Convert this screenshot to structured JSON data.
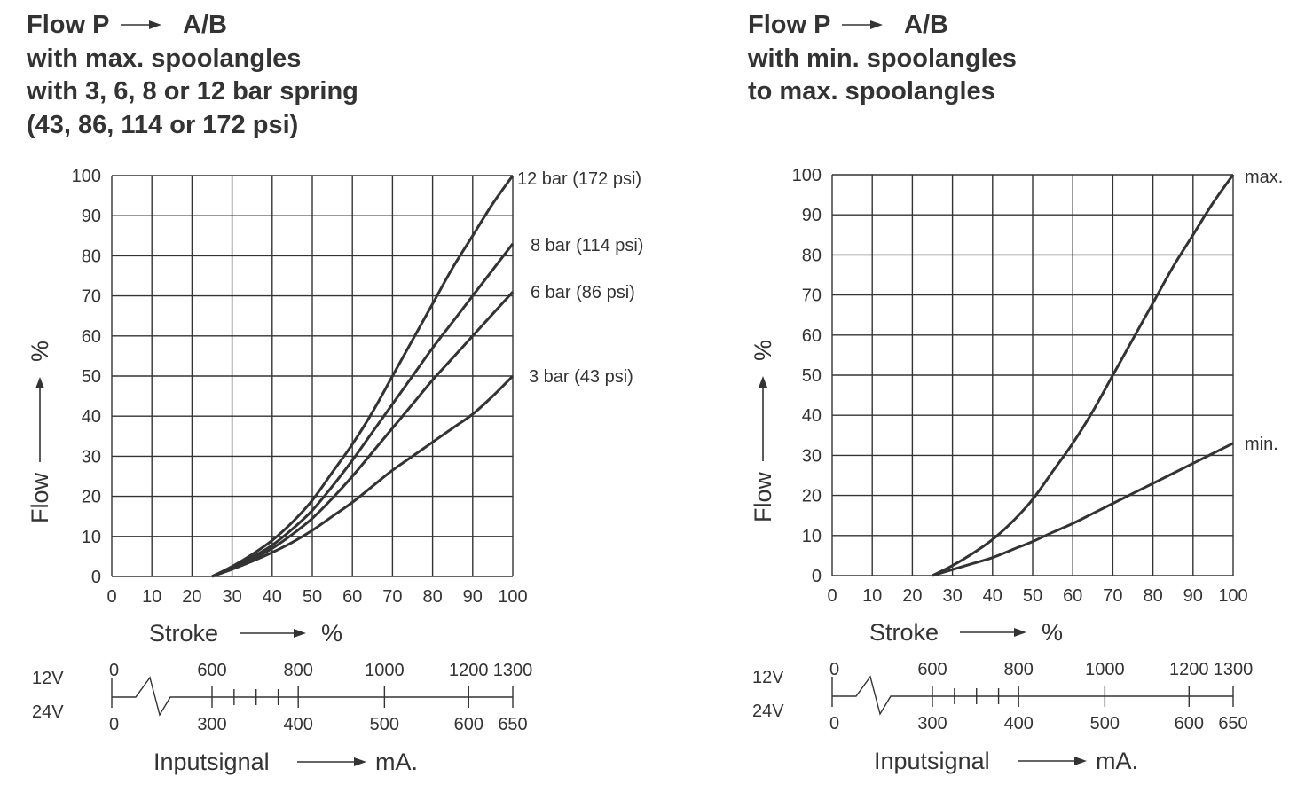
{
  "chart_data": [
    {
      "type": "line",
      "title_lines": [
        "Flow P",
        "A/B",
        "with max. spoolangles",
        "with 3, 6, 8 or 12 bar spring",
        "(43, 86, 114 or 172 psi)"
      ],
      "xlabel": "Stroke",
      "xlabel_unit": "%",
      "ylabel": "Flow",
      "ylabel_unit": "%",
      "xlim": [
        0,
        100
      ],
      "ylim": [
        0,
        100
      ],
      "xticks": [
        "0",
        "10",
        "20",
        "30",
        "40",
        "50",
        "60",
        "70",
        "80",
        "90",
        "100"
      ],
      "yticks": [
        "0",
        "10",
        "20",
        "30",
        "40",
        "50",
        "60",
        "70",
        "80",
        "90",
        "100"
      ],
      "grid": true,
      "series": [
        {
          "name": "12 bar (172 psi)",
          "x": [
            25,
            30,
            35,
            40,
            45,
            50,
            55,
            60,
            65,
            70,
            75,
            80,
            85,
            90,
            95,
            100
          ],
          "y": [
            0,
            2.5,
            5.5,
            9,
            13.5,
            19,
            26,
            33,
            41,
            50,
            59,
            68,
            77,
            85,
            93,
            100
          ]
        },
        {
          "name": "8 bar (114 psi)",
          "x": [
            25,
            30,
            35,
            40,
            45,
            50,
            55,
            60,
            65,
            70,
            75,
            80,
            85,
            90,
            95,
            100
          ],
          "y": [
            0,
            2.2,
            4.8,
            7.8,
            11.8,
            16.5,
            22.5,
            29,
            36,
            43,
            50,
            57,
            63.5,
            70,
            76.5,
            83
          ]
        },
        {
          "name": "6 bar (86 psi)",
          "x": [
            25,
            30,
            35,
            40,
            45,
            50,
            55,
            60,
            65,
            70,
            75,
            80,
            85,
            90,
            95,
            100
          ],
          "y": [
            0,
            2,
            4.3,
            7,
            10.5,
            14.5,
            19.5,
            25,
            31,
            37,
            43,
            49,
            54.5,
            60,
            65.5,
            71
          ]
        },
        {
          "name": "3 bar (43 psi)",
          "x": [
            25,
            30,
            35,
            40,
            45,
            50,
            55,
            60,
            65,
            70,
            75,
            80,
            85,
            90,
            95,
            100
          ],
          "y": [
            0,
            1.8,
            3.8,
            6,
            8.5,
            11.5,
            15,
            18.5,
            22.5,
            26.5,
            30,
            33.5,
            37,
            40.5,
            45,
            50
          ]
        }
      ],
      "input_scale": {
        "label": "Inputsignal",
        "unit": "mA.",
        "rows": [
          {
            "name": "12V",
            "ticks": [
              {
                "label": "0",
                "stroke": 0
              },
              {
                "label": "600",
                "stroke": 25
              },
              {
                "label": "800",
                "stroke": 46.5
              },
              {
                "label": "1000",
                "stroke": 68
              },
              {
                "label": "1200",
                "stroke": 89
              },
              {
                "label": "1300",
                "stroke": 100
              }
            ]
          },
          {
            "name": "24V",
            "ticks": [
              {
                "label": "0",
                "stroke": 0
              },
              {
                "label": "300",
                "stroke": 25
              },
              {
                "label": "400",
                "stroke": 46.5
              },
              {
                "label": "500",
                "stroke": 68
              },
              {
                "label": "600",
                "stroke": 89
              },
              {
                "label": "650",
                "stroke": 100
              }
            ]
          }
        ]
      }
    },
    {
      "type": "line",
      "title_lines": [
        "Flow P",
        "A/B",
        "with min. spoolangles",
        "to max. spoolangles"
      ],
      "xlabel": "Stroke",
      "xlabel_unit": "%",
      "ylabel": "Flow",
      "ylabel_unit": "%",
      "xlim": [
        0,
        100
      ],
      "ylim": [
        0,
        100
      ],
      "xticks": [
        "0",
        "10",
        "20",
        "30",
        "40",
        "50",
        "60",
        "70",
        "80",
        "90",
        "100"
      ],
      "yticks": [
        "0",
        "10",
        "20",
        "30",
        "40",
        "50",
        "60",
        "70",
        "80",
        "90",
        "100"
      ],
      "grid": true,
      "series": [
        {
          "name": "max.",
          "x": [
            25,
            30,
            35,
            40,
            45,
            50,
            55,
            60,
            65,
            70,
            75,
            80,
            85,
            90,
            95,
            100
          ],
          "y": [
            0,
            2.5,
            5.5,
            9,
            13.5,
            19,
            26,
            33,
            41,
            50,
            59,
            68,
            77,
            85,
            93,
            100
          ]
        },
        {
          "name": "min.",
          "x": [
            25,
            30,
            35,
            40,
            45,
            50,
            55,
            60,
            65,
            70,
            75,
            80,
            85,
            90,
            95,
            100
          ],
          "y": [
            0,
            1.5,
            3,
            4.5,
            6.5,
            8.5,
            10.8,
            13,
            15.5,
            18,
            20.5,
            23,
            25.5,
            28,
            30.5,
            33
          ]
        }
      ],
      "input_scale": {
        "label": "Inputsignal",
        "unit": "mA.",
        "rows": [
          {
            "name": "12V",
            "ticks": [
              {
                "label": "0",
                "stroke": 0
              },
              {
                "label": "600",
                "stroke": 25
              },
              {
                "label": "800",
                "stroke": 46.5
              },
              {
                "label": "1000",
                "stroke": 68
              },
              {
                "label": "1200",
                "stroke": 89
              },
              {
                "label": "1300",
                "stroke": 100
              }
            ]
          },
          {
            "name": "24V",
            "ticks": [
              {
                "label": "0",
                "stroke": 0
              },
              {
                "label": "300",
                "stroke": 25
              },
              {
                "label": "400",
                "stroke": 46.5
              },
              {
                "label": "500",
                "stroke": 68
              },
              {
                "label": "600",
                "stroke": 89
              },
              {
                "label": "650",
                "stroke": 100
              }
            ]
          }
        ]
      }
    }
  ],
  "colors": {
    "ink": "#333333",
    "background": "#ffffff"
  }
}
